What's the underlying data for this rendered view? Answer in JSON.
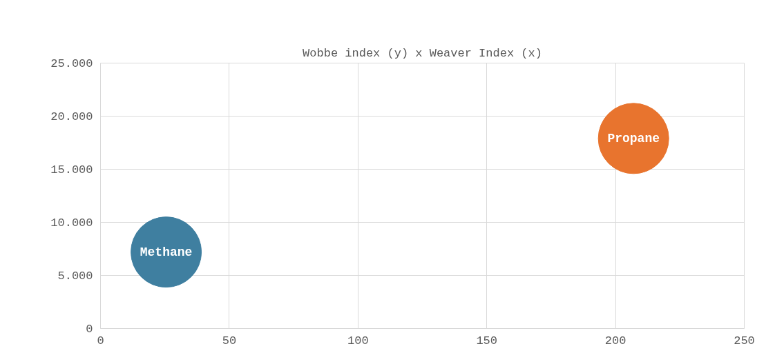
{
  "chart_data": {
    "type": "bubble",
    "title": "Wobbe index (y) x Weaver Index (x)",
    "series": [
      {
        "name": "Methane",
        "color": "#3f7fa0",
        "x": [
          25.5
        ],
        "values": [
          7200
        ],
        "sizes": [
          1
        ]
      },
      {
        "name": "Propane",
        "color": "#e8742e",
        "x": [
          207
        ],
        "values": [
          17900
        ],
        "sizes": [
          1
        ]
      }
    ],
    "xlim": [
      0,
      250
    ],
    "xticks": [
      0,
      50,
      100,
      150,
      200,
      250
    ],
    "ylim": [
      0,
      25000
    ],
    "yticks": [
      0,
      {
        "value": 5000,
        "label": "5.000"
      },
      {
        "value": 10000,
        "label": "10.000"
      },
      {
        "value": 15000,
        "label": "15.000"
      },
      {
        "value": 20000,
        "label": "20.000"
      },
      {
        "value": 25000,
        "label": "25.000"
      }
    ],
    "grid": true
  }
}
